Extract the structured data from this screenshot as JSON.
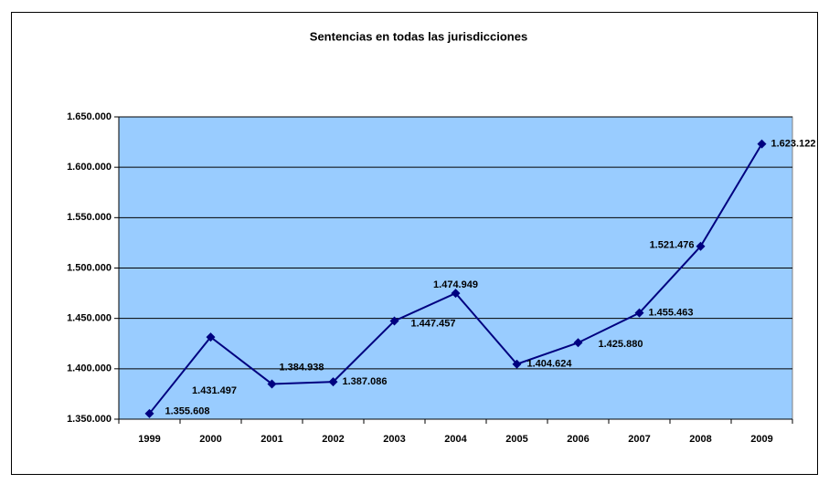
{
  "chart_data": {
    "type": "line",
    "title": "Sentencias en todas las jurisdicciones",
    "categories": [
      "1999",
      "2000",
      "2001",
      "2002",
      "2003",
      "2004",
      "2005",
      "2006",
      "2007",
      "2008",
      "2009"
    ],
    "values": [
      1355608,
      1431497,
      1384938,
      1387086,
      1447457,
      1474949,
      1404624,
      1425880,
      1455463,
      1521476,
      1623122
    ],
    "value_labels": [
      "1.355.608",
      "1.431.497",
      "1.384.938",
      "1.387.086",
      "1.447.457",
      "1.474.949",
      "1.404.624",
      "1.425.880",
      "1.455.463",
      "1.521.476",
      "1.623.122"
    ],
    "color": "#000080",
    "ylim": [
      1350000,
      1650000
    ],
    "yticks": [
      {
        "value": 1350000,
        "label": "1.350.000"
      },
      {
        "value": 1400000,
        "label": "1.400.000"
      },
      {
        "value": 1450000,
        "label": "1.450.000"
      },
      {
        "value": 1500000,
        "label": "1.500.000"
      },
      {
        "value": 1550000,
        "label": "1.550.000"
      },
      {
        "value": 1600000,
        "label": "1.600.000"
      },
      {
        "value": 1650000,
        "label": "1.650.000"
      }
    ],
    "grid": true
  }
}
